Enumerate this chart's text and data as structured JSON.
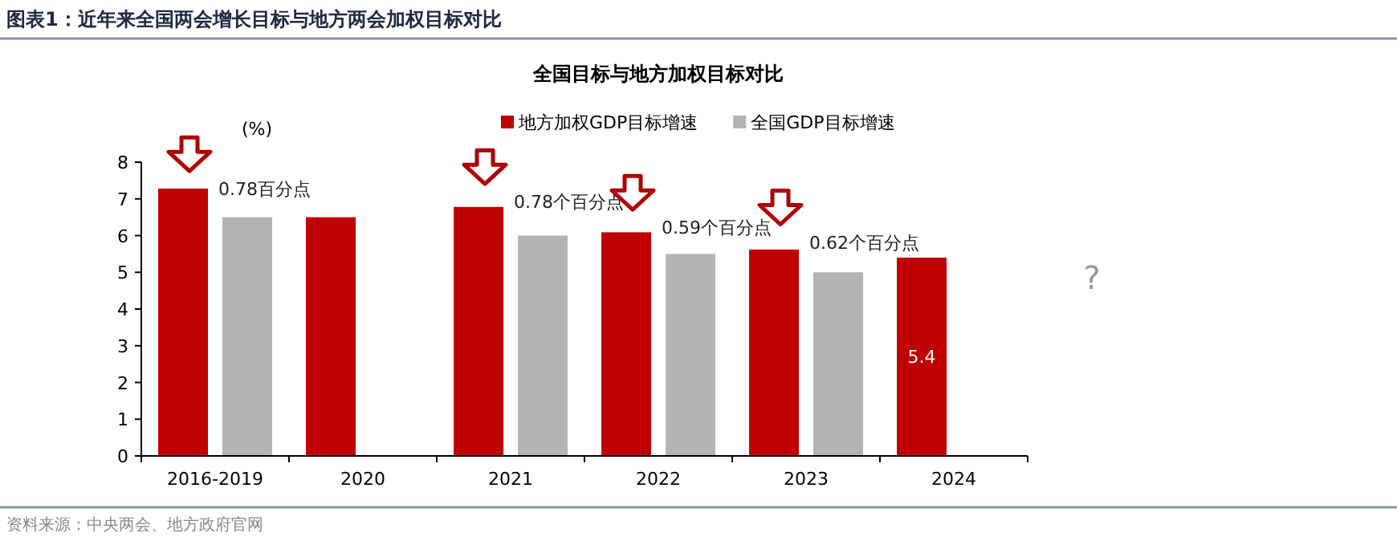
{
  "chart_data": {
    "type": "bar",
    "title": "图表1：近年来全国两会增长目标与地方两会加权目标对比",
    "subtitle": "全国目标与地方加权目标对比",
    "ylabel": "(%)",
    "categories": [
      "2016-2019",
      "2020",
      "2021",
      "2022",
      "2023",
      "2024"
    ],
    "series": [
      {
        "name": "地方加权GDP目标增速",
        "color": "#c00000",
        "values": [
          7.28,
          6.5,
          6.78,
          6.09,
          5.62,
          5.4
        ],
        "value_labels": [
          null,
          null,
          null,
          null,
          null,
          "5.4"
        ]
      },
      {
        "name": "全国GDP目标增速",
        "color": "#b3b3b3",
        "values": [
          6.5,
          null,
          6.0,
          5.5,
          5.0,
          null
        ]
      }
    ],
    "ylim": [
      0,
      8
    ],
    "yticks": [
      0,
      1,
      2,
      3,
      4,
      5,
      6,
      7,
      8
    ],
    "legend": "top",
    "grid": false,
    "annotations": [
      {
        "text": "0.78百分点",
        "x": "2016-2019",
        "y": 7.1
      },
      {
        "text": "0.78个百分点",
        "x": "2021",
        "y": 6.75
      },
      {
        "text": "0.59个百分点",
        "x": "2022",
        "y": 6.05
      },
      {
        "text": "0.62个百分点",
        "x": "2023",
        "y": 5.65
      },
      "?",
      "资料来源：中央两会、地方政府官网"
    ]
  }
}
